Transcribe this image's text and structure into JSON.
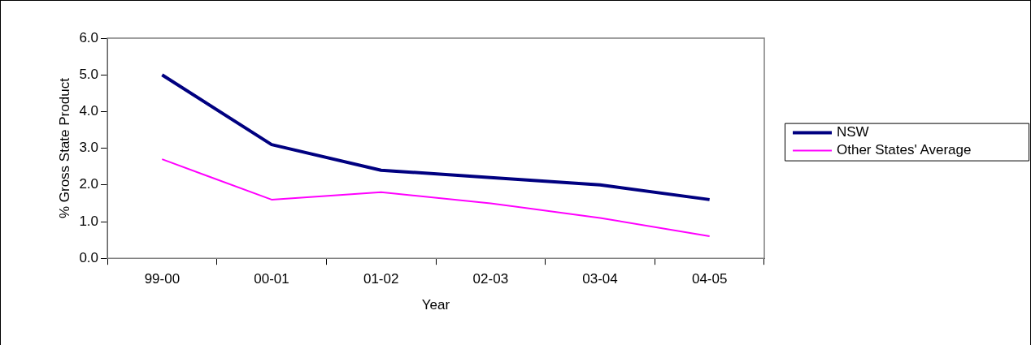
{
  "chart_data": {
    "type": "line",
    "xlabel": "Year",
    "ylabel": "% Gross State Product",
    "categories": [
      "99-00",
      "00-01",
      "01-02",
      "02-03",
      "03-04",
      "04-05"
    ],
    "series": [
      {
        "name": "NSW",
        "color": "#000080",
        "values": [
          5.0,
          3.1,
          2.4,
          2.2,
          2.0,
          1.6
        ]
      },
      {
        "name": "Other States' Average",
        "color": "#ff00ff",
        "values": [
          2.7,
          1.6,
          1.8,
          1.5,
          1.1,
          0.6
        ]
      }
    ],
    "ylim": [
      0,
      6
    ],
    "yticks": [
      {
        "value": 0,
        "label": "0.0"
      },
      {
        "value": 1,
        "label": "1.0"
      },
      {
        "value": 2,
        "label": "2.0"
      },
      {
        "value": 3,
        "label": "3.0"
      },
      {
        "value": 4,
        "label": "4.0"
      },
      {
        "value": 5,
        "label": "5.0"
      },
      {
        "value": 6,
        "label": "6.0"
      }
    ],
    "grid": false,
    "legend": "right",
    "marker": "none",
    "line_style": "solid"
  }
}
